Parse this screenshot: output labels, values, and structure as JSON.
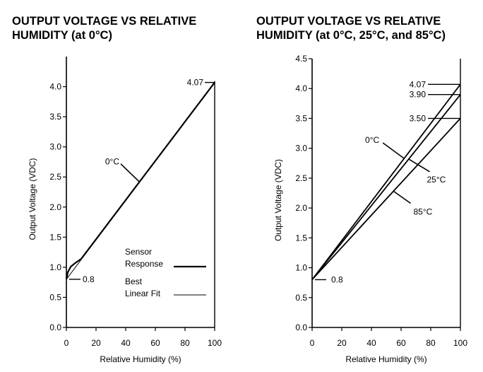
{
  "chart_data": [
    {
      "type": "line",
      "title": "OUTPUT VOLTAGE VS RELATIVE HUMIDITY (at 0°C)",
      "title_lines": [
        "OUTPUT VOLTAGE VS RELATIVE",
        "HUMIDITY (at 0°C)"
      ],
      "xlabel": "Relative Humidity (%)",
      "ylabel": "Output Voltage (VDC)",
      "xlim": [
        0,
        100
      ],
      "ylim": [
        0,
        4.5
      ],
      "xticks": [
        0,
        20,
        40,
        60,
        80,
        100
      ],
      "yticks": [
        0.0,
        0.5,
        1.0,
        1.5,
        2.0,
        2.5,
        3.0,
        3.5,
        4.0
      ],
      "ytick_labels": [
        "0.0",
        "0.5",
        "1.0",
        "1.5",
        "2.0",
        "2.5",
        "3.0",
        "3.5",
        "4.0"
      ],
      "series": [
        {
          "name": "0°C Sensor Response",
          "x": [
            0,
            1,
            3,
            6,
            10,
            100
          ],
          "y": [
            0.8,
            0.92,
            1.01,
            1.07,
            1.14,
            4.07
          ]
        },
        {
          "name": "0°C Best Linear Fit",
          "x": [
            0,
            100
          ],
          "y": [
            0.8,
            4.07
          ]
        }
      ],
      "annotations": [
        {
          "text": "4.07",
          "x": 100,
          "y": 4.07
        },
        {
          "text": "0.8",
          "x": 0,
          "y": 0.8
        },
        {
          "text": "0°C",
          "x": 50,
          "y": 2.4
        }
      ],
      "legend": {
        "position": "bottom-right",
        "items": [
          {
            "lines": [
              "Sensor",
              "Response"
            ]
          },
          {
            "lines": [
              "Best",
              "Linear Fit"
            ]
          }
        ]
      }
    },
    {
      "type": "line",
      "title": "OUTPUT VOLTAGE VS RELATIVE HUMIDITY (at 0°C, 25°C, and 85°C)",
      "title_lines": [
        "OUTPUT VOLTAGE VS RELATIVE",
        "HUMIDITY (at 0°C, 25°C, and 85°C)"
      ],
      "xlabel": "Relative Humidity (%)",
      "ylabel": "Output Voltage (VDC)",
      "xlim": [
        0,
        100
      ],
      "ylim": [
        0,
        4.5
      ],
      "xticks": [
        0,
        20,
        40,
        60,
        80,
        100
      ],
      "yticks": [
        0.0,
        0.5,
        1.0,
        1.5,
        2.0,
        2.5,
        3.0,
        3.5,
        4.0,
        4.5
      ],
      "ytick_labels": [
        "0.0",
        "0.5",
        "1.0",
        "1.5",
        "2.0",
        "2.5",
        "3.0",
        "3.5",
        "4.0",
        "4.5"
      ],
      "series": [
        {
          "name": "0°C",
          "x": [
            0,
            100
          ],
          "y": [
            0.8,
            4.07
          ]
        },
        {
          "name": "25°C",
          "x": [
            0,
            100
          ],
          "y": [
            0.8,
            3.9
          ]
        },
        {
          "name": "85°C",
          "x": [
            0,
            100
          ],
          "y": [
            0.8,
            3.5
          ]
        }
      ],
      "annotations": [
        {
          "text": "4.07",
          "x": 100,
          "y": 4.07
        },
        {
          "text": "3.90",
          "x": 100,
          "y": 3.9
        },
        {
          "text": "3.50",
          "x": 100,
          "y": 3.5
        },
        {
          "text": "0.8",
          "x": 0,
          "y": 0.8
        },
        {
          "text": "0°C",
          "series": "0°C",
          "x": 62,
          "y": 2.83
        },
        {
          "text": "25°C",
          "series": "25°C",
          "x": 65,
          "y": 2.82
        },
        {
          "text": "85°C",
          "series": "85°C",
          "x": 55,
          "y": 2.28
        }
      ]
    }
  ]
}
